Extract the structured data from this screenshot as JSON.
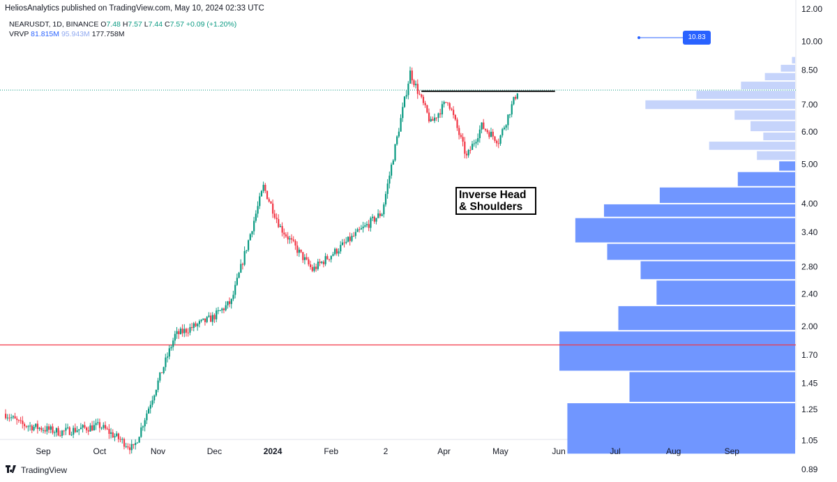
{
  "publisher_line": "HeliosAnalytics published on TradingView.com, May 10, 2024 02:33 UTC",
  "legend": {
    "symbol": "NEARUSDT, 1D, BINANCE",
    "o_label": "O",
    "o_val": "7.48",
    "h_label": "H",
    "h_val": "7.57",
    "l_label": "L",
    "l_val": "7.44",
    "c_label": "C",
    "c_val": "7.57",
    "change": "+0.09 (+1.20%)",
    "vrvp_label": "VRVP",
    "vrvp_up": "81.815M",
    "vrvp_down": "95.943M",
    "vrvp_total": "177.758M"
  },
  "annotation": {
    "line1": "Inverse Head",
    "line2": "& Shoulders"
  },
  "price_badge": "10.83",
  "footer": {
    "brand": "TradingView"
  },
  "colors": {
    "up": "#089981",
    "down": "#f23645",
    "support_line": "#f23645",
    "neckline": "#000000",
    "vp_high": "#7096ff",
    "vp_low": "#c6d4fb",
    "badge": "#2962ff",
    "dotted_close": "#089981"
  },
  "chart_data": {
    "type": "candlestick",
    "symbol": "NEARUSDT",
    "interval": "1D",
    "scale": "log",
    "ylim": [
      0.85,
      12.5
    ],
    "y_ticks": [
      "12.00",
      "10.00",
      "8.50",
      "7.00",
      "6.00",
      "5.00",
      "4.00",
      "3.40",
      "2.80",
      "2.40",
      "2.00",
      "1.70",
      "1.45",
      "1.25",
      "1.05",
      "0.89"
    ],
    "x_ticks": [
      "Sep",
      "Oct",
      "Nov",
      "Dec",
      "2024",
      "Feb",
      "2",
      "Apr",
      "May",
      "Jun",
      "Jul",
      "Aug",
      "Sep"
    ],
    "x_start": "2023-08-12",
    "x_end": "2024-10-05",
    "last_candle": "2024-05-10",
    "key_points": [
      [
        "2023-08-12",
        1.22
      ],
      [
        "2023-08-20",
        1.15
      ],
      [
        "2023-09-10",
        1.1
      ],
      [
        "2023-10-01",
        1.14
      ],
      [
        "2023-10-19",
        1.0
      ],
      [
        "2023-11-10",
        1.9
      ],
      [
        "2023-11-30",
        2.1
      ],
      [
        "2023-12-10",
        2.3
      ],
      [
        "2023-12-27",
        4.4
      ],
      [
        "2024-01-05",
        3.5
      ],
      [
        "2024-01-22",
        2.75
      ],
      [
        "2024-02-05",
        3.1
      ],
      [
        "2024-02-28",
        3.8
      ],
      [
        "2024-03-14",
        8.4
      ],
      [
        "2024-03-25",
        6.3
      ],
      [
        "2024-04-03",
        7.2
      ],
      [
        "2024-04-13",
        5.2
      ],
      [
        "2024-04-21",
        6.2
      ],
      [
        "2024-04-30",
        5.7
      ],
      [
        "2024-05-10",
        7.57
      ]
    ],
    "horizontal_lines": [
      {
        "name": "support",
        "price": 1.8,
        "color": "#f23645"
      },
      {
        "name": "neckline",
        "price": 7.55,
        "from": "2024-03-20",
        "to": "2024-05-30",
        "color": "#000000"
      }
    ],
    "volume_profile": [
      {
        "low": 8.8,
        "high": 9.2,
        "vol": 0.02
      },
      {
        "low": 8.4,
        "high": 8.8,
        "vol": 0.09
      },
      {
        "low": 8.0,
        "high": 8.4,
        "vol": 0.19
      },
      {
        "low": 7.6,
        "high": 8.0,
        "vol": 0.34
      },
      {
        "low": 7.2,
        "high": 7.6,
        "vol": 0.62
      },
      {
        "low": 6.8,
        "high": 7.2,
        "vol": 0.94
      },
      {
        "low": 6.4,
        "high": 6.8,
        "vol": 0.38
      },
      {
        "low": 6.0,
        "high": 6.4,
        "vol": 0.28
      },
      {
        "low": 5.7,
        "high": 6.0,
        "vol": 0.2
      },
      {
        "low": 5.4,
        "high": 5.7,
        "vol": 0.54
      },
      {
        "low": 5.1,
        "high": 5.4,
        "vol": 0.24
      },
      {
        "low": 4.8,
        "high": 5.1,
        "vol": 0.1
      },
      {
        "low": 4.4,
        "high": 4.8,
        "vol": 0.36
      },
      {
        "low": 4.0,
        "high": 4.4,
        "vol": 0.85
      },
      {
        "low": 3.7,
        "high": 4.0,
        "vol": 1.2
      },
      {
        "low": 3.2,
        "high": 3.7,
        "vol": 1.38
      },
      {
        "low": 2.9,
        "high": 3.2,
        "vol": 1.18
      },
      {
        "low": 2.6,
        "high": 2.9,
        "vol": 0.97
      },
      {
        "low": 2.25,
        "high": 2.6,
        "vol": 0.87
      },
      {
        "low": 1.95,
        "high": 2.25,
        "vol": 1.11
      },
      {
        "low": 1.55,
        "high": 1.95,
        "vol": 1.48
      },
      {
        "low": 1.3,
        "high": 1.55,
        "vol": 1.04
      },
      {
        "low": 0.97,
        "high": 1.3,
        "vol": 1.43
      }
    ]
  }
}
